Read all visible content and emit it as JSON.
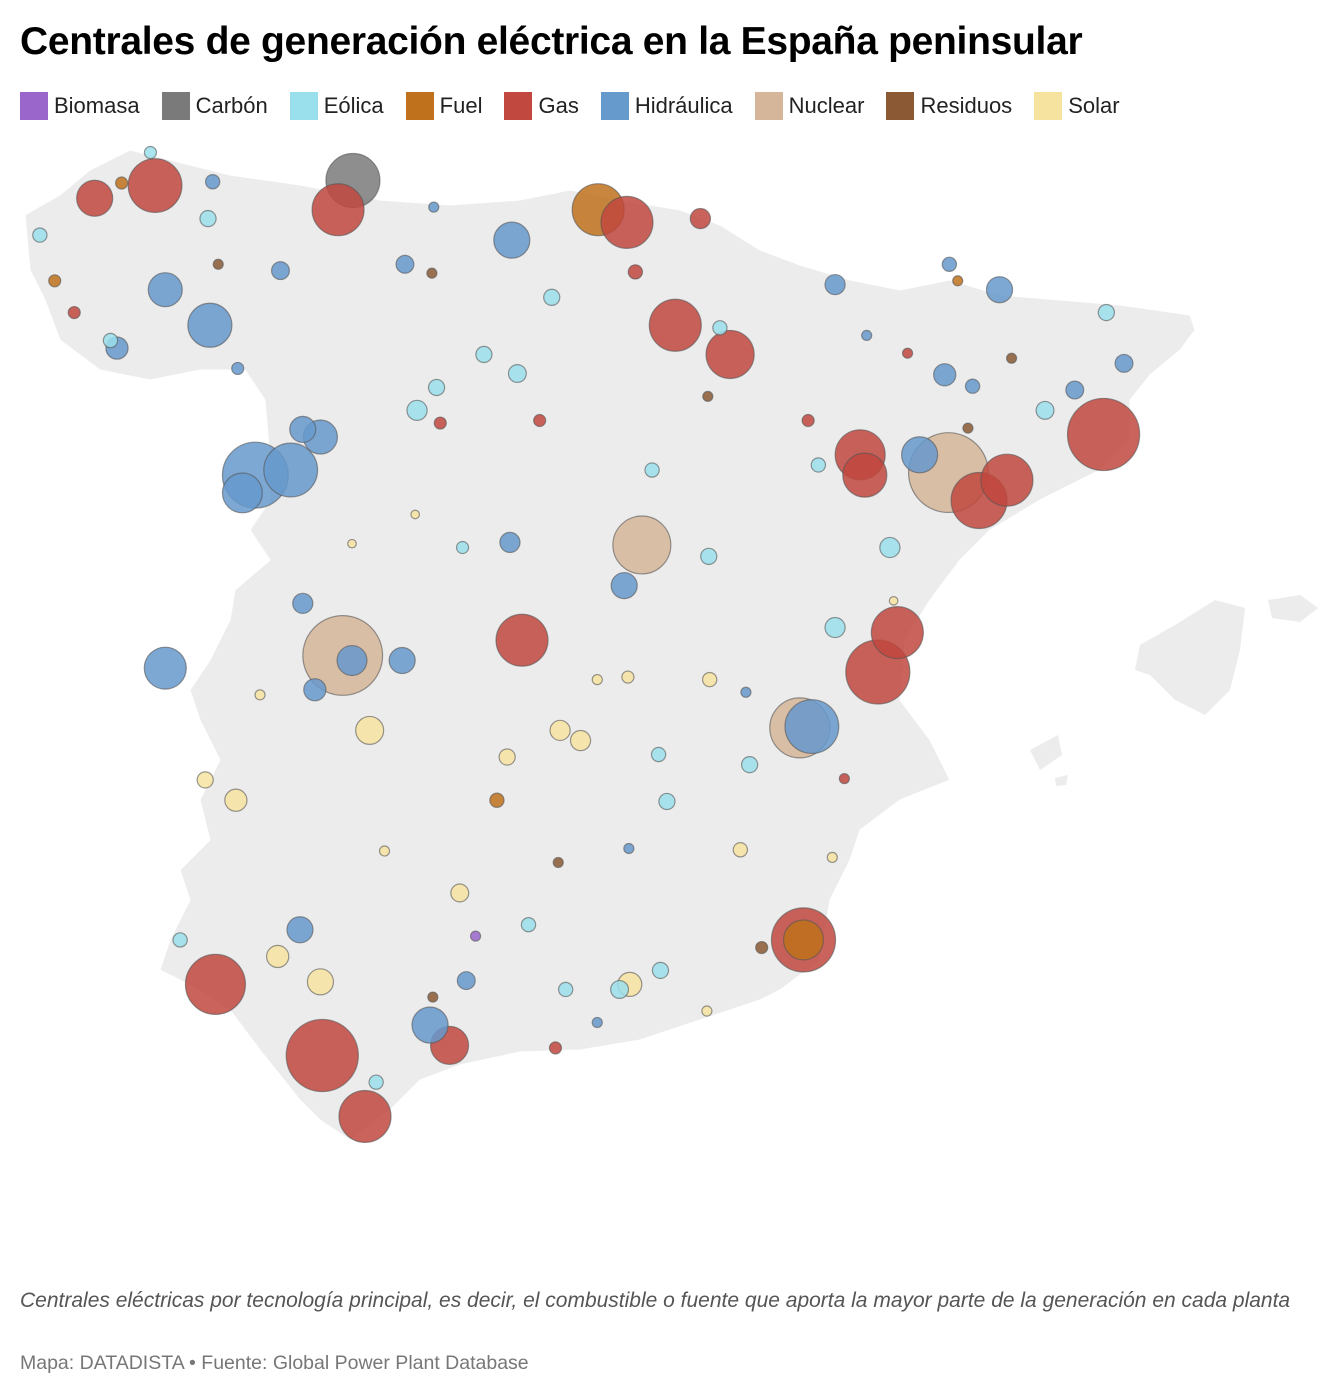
{
  "title": "Centrales de generación eléctrica en la España peninsular",
  "legend": [
    {
      "key": "biomasa",
      "label": "Biomasa",
      "color": "#9b66cc"
    },
    {
      "key": "carbon",
      "label": "Carbón",
      "color": "#7a7a7a"
    },
    {
      "key": "eolica",
      "label": "Eólica",
      "color": "#9adfec"
    },
    {
      "key": "fuel",
      "label": "Fuel",
      "color": "#c0711c"
    },
    {
      "key": "gas",
      "label": "Gas",
      "color": "#c0483e"
    },
    {
      "key": "hidraulica",
      "label": "Hidráulica",
      "color": "#6699cc"
    },
    {
      "key": "nuclear",
      "label": "Nuclear",
      "color": "#d6b69a"
    },
    {
      "key": "residuos",
      "label": "Residuos",
      "color": "#8b5a34"
    },
    {
      "key": "solar",
      "label": "Solar",
      "color": "#f7e3a0"
    }
  ],
  "plants_note": "lon, lat, type key, capacity MW (approximate)",
  "plants": [
    [
      -5.77,
      43.56,
      "carbon",
      1009
    ],
    [
      -7.9,
      43.52,
      "gas",
      1000
    ],
    [
      -5.93,
      43.33,
      "gas",
      935
    ],
    [
      -8.55,
      43.42,
      "gas",
      450
    ],
    [
      -3.13,
      43.33,
      "fuel",
      935
    ],
    [
      -2.82,
      43.23,
      "gas",
      935
    ],
    [
      -4.06,
      43.09,
      "hidraulica",
      450
    ],
    [
      -2.03,
      43.26,
      "gas",
      140
    ],
    [
      -6.82,
      41.24,
      "hidraulica",
      1500
    ],
    [
      -6.44,
      41.28,
      "hidraulica",
      1000
    ],
    [
      -6.96,
      41.1,
      "hidraulica",
      550
    ],
    [
      -7.79,
      39.72,
      "hidraulica",
      610
    ],
    [
      -5.88,
      39.82,
      "nuclear",
      2200
    ],
    [
      -5.78,
      39.78,
      "hidraulica",
      310
    ],
    [
      -2.66,
      40.69,
      "nuclear",
      1160
    ],
    [
      -2.3,
      42.42,
      "gas",
      935
    ],
    [
      -1.71,
      42.19,
      "gas",
      800
    ],
    [
      -0.31,
      41.4,
      "gas",
      865
    ],
    [
      -0.26,
      41.24,
      "gas",
      670
    ],
    [
      0.64,
      41.26,
      "nuclear",
      2200
    ],
    [
      0.97,
      41.04,
      "gas",
      1085
    ],
    [
      1.27,
      41.2,
      "gas",
      935
    ],
    [
      2.31,
      41.56,
      "gas",
      1800
    ],
    [
      0.33,
      41.4,
      "hidraulica",
      450
    ],
    [
      0.09,
      40.0,
      "gas",
      935
    ],
    [
      -0.12,
      39.69,
      "gas",
      1420
    ],
    [
      -0.96,
      39.25,
      "nuclear",
      1245
    ],
    [
      -0.83,
      39.26,
      "hidraulica",
      1000
    ],
    [
      -3.95,
      39.94,
      "gas",
      935
    ],
    [
      -0.92,
      37.58,
      "gas",
      1420
    ],
    [
      -0.92,
      37.58,
      "fuel",
      550
    ],
    [
      -7.25,
      37.23,
      "gas",
      1245
    ],
    [
      -6.1,
      36.67,
      "gas",
      1800
    ],
    [
      -5.64,
      36.19,
      "gas",
      935
    ],
    [
      -4.73,
      36.75,
      "gas",
      500
    ],
    [
      -4.94,
      36.91,
      "hidraulica",
      450
    ],
    [
      -6.34,
      37.66,
      "hidraulica",
      235
    ],
    [
      -2.85,
      40.37,
      "hidraulica",
      235
    ],
    [
      -6.31,
      40.23,
      "hidraulica",
      140
    ],
    [
      -5.24,
      39.78,
      "hidraulica",
      235
    ],
    [
      -6.18,
      39.55,
      "hidraulica",
      170
    ],
    [
      -7.31,
      42.42,
      "hidraulica",
      670
    ],
    [
      -7.79,
      42.7,
      "hidraulica",
      400
    ],
    [
      -6.31,
      41.6,
      "hidraulica",
      235
    ],
    [
      -6.12,
      41.54,
      "hidraulica",
      400
    ],
    [
      -4.08,
      40.71,
      "hidraulica",
      140
    ],
    [
      1.19,
      42.7,
      "hidraulica",
      235
    ],
    [
      -0.58,
      42.74,
      "hidraulica",
      140
    ],
    [
      0.6,
      42.03,
      "hidraulica",
      170
    ],
    [
      2.0,
      41.91,
      "hidraulica",
      110
    ],
    [
      -4.55,
      37.26,
      "hidraulica",
      110
    ],
    [
      -5.59,
      39.23,
      "solar",
      270
    ],
    [
      -2.79,
      37.23,
      "solar",
      200
    ],
    [
      -7.03,
      38.68,
      "solar",
      170
    ],
    [
      -6.12,
      37.25,
      "solar",
      235
    ],
    [
      -3.54,
      39.23,
      "solar",
      140
    ],
    [
      -3.32,
      39.15,
      "solar",
      140
    ],
    [
      -6.58,
      37.45,
      "solar",
      170
    ],
    [
      -4.62,
      37.95,
      "solar",
      110
    ],
    [
      -5.08,
      41.75,
      "eolica",
      140
    ],
    [
      -4.36,
      42.19,
      "eolica",
      90
    ],
    [
      -4.0,
      42.04,
      "eolica",
      110
    ],
    [
      -4.87,
      41.93,
      "eolica",
      90
    ],
    [
      -1.94,
      40.6,
      "eolica",
      90
    ],
    [
      0.01,
      40.67,
      "eolica",
      140
    ],
    [
      1.68,
      41.75,
      "eolica",
      110
    ],
    [
      2.34,
      42.52,
      "eolica",
      90
    ],
    [
      -0.58,
      40.04,
      "eolica",
      140
    ],
    [
      -2.39,
      38.67,
      "eolica",
      90
    ],
    [
      -1.5,
      38.96,
      "eolica",
      90
    ],
    [
      -2.46,
      37.34,
      "eolica",
      90
    ],
    [
      -2.9,
      37.19,
      "eolica",
      110
    ],
    [
      -3.48,
      37.19,
      "eolica",
      70
    ],
    [
      -3.88,
      37.7,
      "eolica",
      70
    ],
    [
      -7.63,
      37.58,
      "eolica",
      70
    ],
    [
      -5.52,
      36.46,
      "eolica",
      70
    ],
    [
      -9.14,
      43.13,
      "eolica",
      70
    ],
    [
      -8.38,
      42.3,
      "eolica",
      70
    ],
    [
      -7.33,
      43.26,
      "eolica",
      90
    ],
    [
      -7.95,
      43.78,
      "eolica",
      50
    ],
    [
      -3.63,
      42.64,
      "eolica",
      90
    ],
    [
      -1.82,
      42.4,
      "eolica",
      70
    ],
    [
      -0.76,
      41.32,
      "eolica",
      70
    ],
    [
      -2.55,
      41.28,
      "eolica",
      70
    ],
    [
      -4.59,
      40.67,
      "eolica",
      50
    ],
    [
      -2.48,
      39.04,
      "eolica",
      70
    ],
    [
      -4.83,
      41.65,
      "gas",
      50
    ],
    [
      -3.76,
      41.67,
      "gas",
      50
    ],
    [
      -2.73,
      42.84,
      "gas",
      70
    ],
    [
      -8.77,
      42.52,
      "gas",
      50
    ],
    [
      0.2,
      42.2,
      "gas",
      35
    ],
    [
      -0.87,
      41.67,
      "gas",
      50
    ],
    [
      -0.48,
      38.85,
      "gas",
      35
    ],
    [
      -3.59,
      36.73,
      "gas",
      50
    ],
    [
      -3.56,
      38.19,
      "residuos",
      35
    ],
    [
      -4.91,
      37.13,
      "residuos",
      35
    ],
    [
      -1.37,
      37.52,
      "residuos",
      50
    ],
    [
      -4.92,
      42.83,
      "residuos",
      35
    ],
    [
      -1.95,
      41.86,
      "residuos",
      35
    ],
    [
      1.32,
      42.16,
      "residuos",
      35
    ],
    [
      0.85,
      41.61,
      "residuos",
      35
    ],
    [
      -7.22,
      42.9,
      "residuos",
      35
    ],
    [
      -4.45,
      37.61,
      "biomasa",
      35
    ],
    [
      -4.22,
      38.68,
      "fuel",
      70
    ],
    [
      -8.98,
      42.77,
      "fuel",
      50
    ],
    [
      -8.26,
      43.54,
      "fuel",
      50
    ],
    [
      0.74,
      42.77,
      "fuel",
      35
    ],
    [
      -5.1,
      40.93,
      "solar",
      25
    ],
    [
      -6.77,
      39.51,
      "solar",
      35
    ],
    [
      -4.11,
      39.02,
      "solar",
      90
    ],
    [
      -1.93,
      39.63,
      "solar",
      70
    ],
    [
      -1.6,
      38.29,
      "solar",
      70
    ],
    [
      -7.36,
      38.84,
      "solar",
      90
    ],
    [
      -2.81,
      39.65,
      "solar",
      50
    ],
    [
      -3.14,
      39.63,
      "solar",
      35
    ],
    [
      -5.43,
      38.28,
      "solar",
      35
    ],
    [
      -1.96,
      37.02,
      "solar",
      35
    ],
    [
      -0.61,
      38.23,
      "solar",
      35
    ],
    [
      0.05,
      40.25,
      "solar",
      25
    ],
    [
      -5.78,
      40.7,
      "solar",
      25
    ],
    [
      -2.8,
      38.3,
      "hidraulica",
      35
    ],
    [
      -3.14,
      36.93,
      "hidraulica",
      35
    ],
    [
      -1.54,
      39.53,
      "hidraulica",
      35
    ],
    [
      -0.24,
      42.34,
      "hidraulica",
      35
    ],
    [
      -4.9,
      43.35,
      "hidraulica",
      35
    ],
    [
      -7.28,
      43.55,
      "hidraulica",
      70
    ],
    [
      -6.55,
      42.85,
      "hidraulica",
      110
    ],
    [
      -5.21,
      42.9,
      "hidraulica",
      110
    ],
    [
      0.65,
      42.9,
      "hidraulica",
      70
    ],
    [
      2.53,
      42.12,
      "hidraulica",
      110
    ],
    [
      0.9,
      41.94,
      "hidraulica",
      70
    ],
    [
      -8.31,
      42.24,
      "hidraulica",
      170
    ],
    [
      -7.01,
      42.08,
      "hidraulica",
      50
    ]
  ],
  "note": "Centrales eléctricas por tecnología principal, es decir, el combustible o fuente que aporta la mayor parte de la generación en cada planta",
  "source": "Mapa: DATADISTA • Fuente: Global Power Plant Database"
}
